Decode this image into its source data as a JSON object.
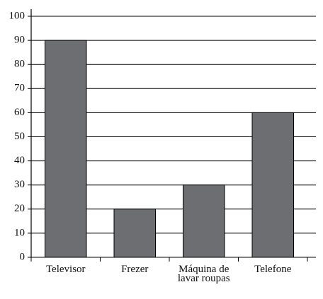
{
  "chart_data": {
    "type": "bar",
    "categories": [
      "Televisor",
      "Frezer",
      "Máquina de lavar roupas",
      "Telefone"
    ],
    "values": [
      90,
      20,
      30,
      60
    ],
    "color": "#6d6e71",
    "ylim": [
      0,
      100
    ],
    "yticks": [
      0,
      10,
      20,
      30,
      40,
      50,
      60,
      70,
      80,
      90,
      100
    ],
    "grid": true
  }
}
